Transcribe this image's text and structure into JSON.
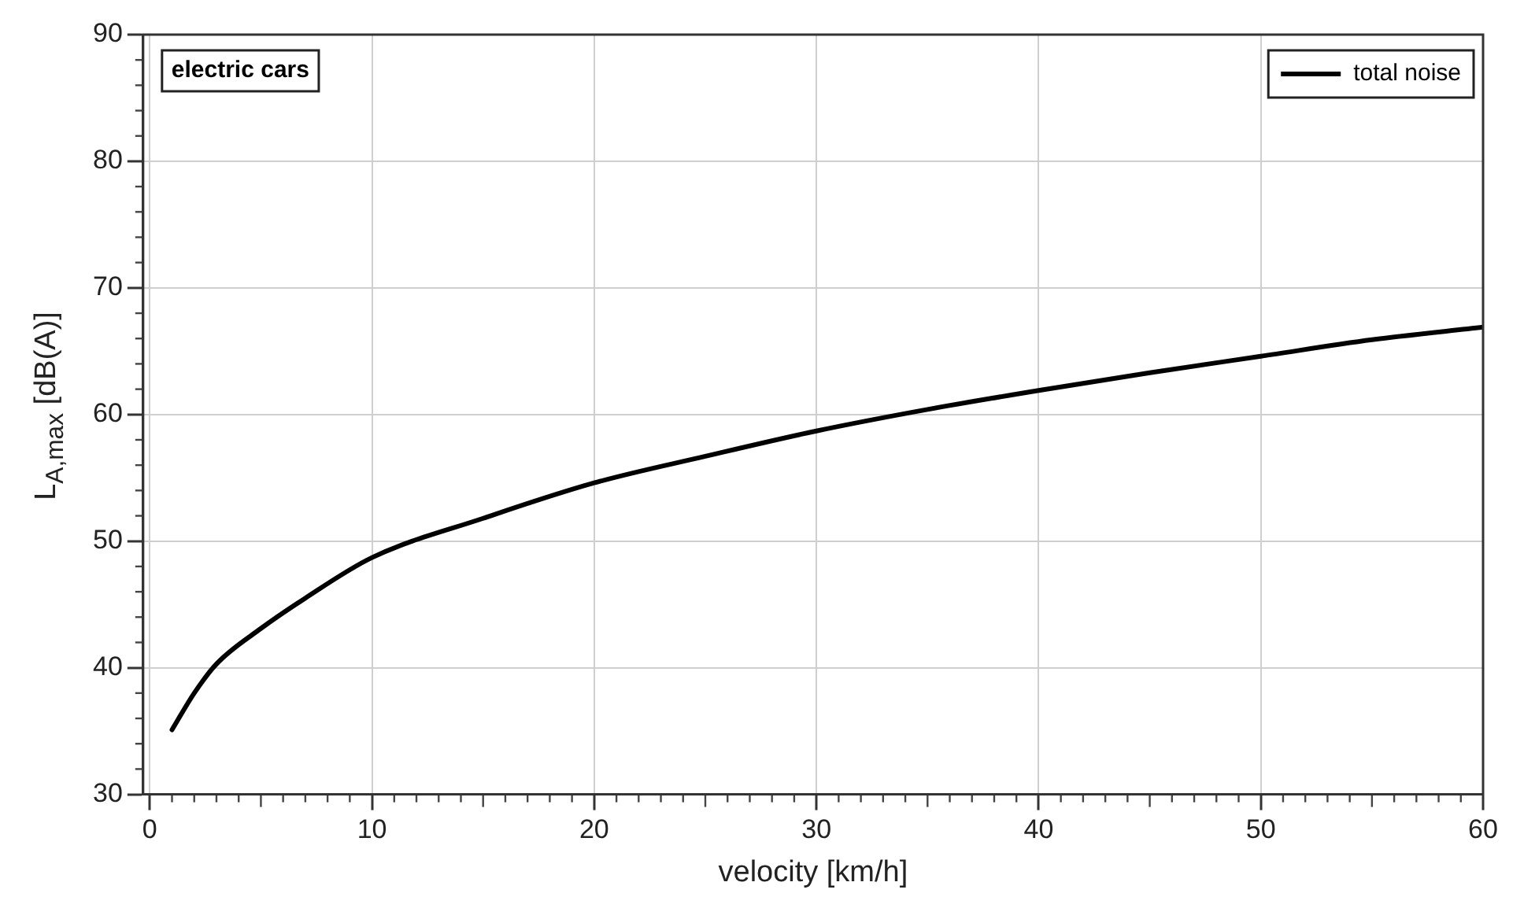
{
  "chart_data": {
    "type": "line",
    "xlabel": "velocity [km/h]",
    "ylabel": "L$_{A,max}$ [dB(A)]",
    "annotations": [
      "electric cars"
    ],
    "x": [
      1,
      2,
      3,
      5,
      7,
      10,
      15,
      20,
      25,
      30,
      35,
      40,
      45,
      50,
      55,
      60
    ],
    "series": [
      {
        "name": "total noise",
        "color": "#000000",
        "values": [
          35.1,
          38.0,
          40.3,
          43.1,
          45.5,
          48.7,
          51.8,
          54.6,
          56.7,
          58.7,
          60.4,
          61.9,
          63.3,
          64.6,
          65.9,
          66.9
        ]
      }
    ],
    "xlim": [
      -0.3,
      60
    ],
    "ylim": [
      30,
      90
    ],
    "xticks": [
      0,
      10,
      20,
      30,
      40,
      50,
      60
    ],
    "yticks": [
      30,
      40,
      50,
      60,
      70,
      80,
      90
    ],
    "grid": true,
    "legend": "top right",
    "marker": "none",
    "line_style": "solid"
  }
}
